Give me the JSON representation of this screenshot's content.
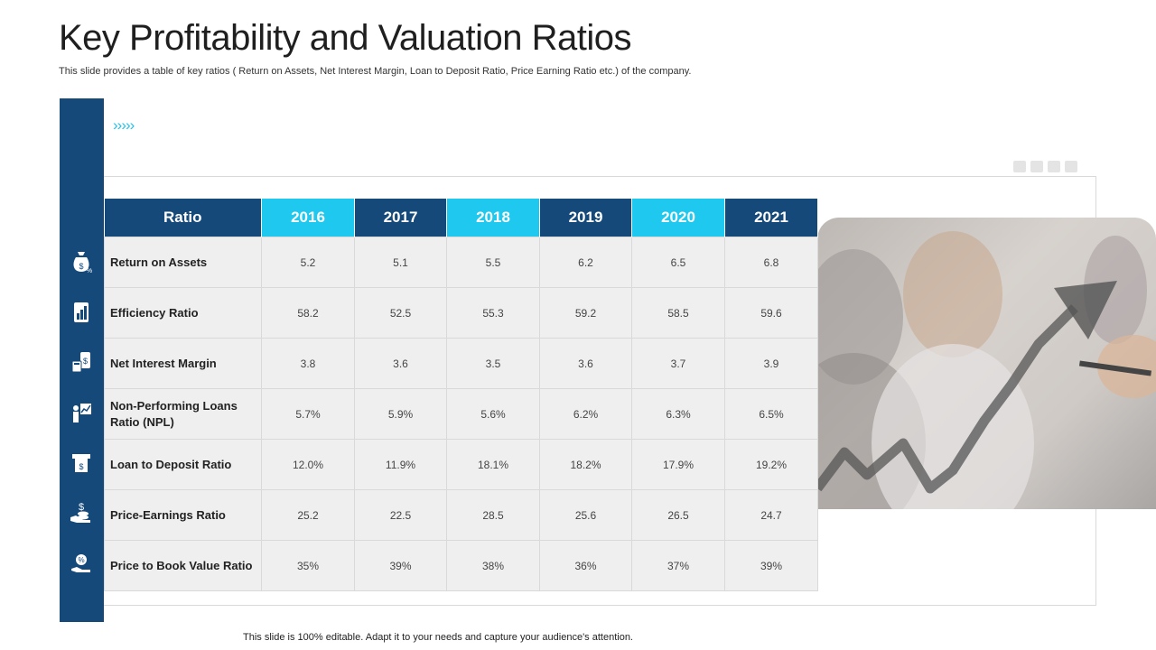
{
  "title": "Key Profitability and Valuation Ratios",
  "subtitle": "This slide provides a table of key ratios ( Return on Assets, Net Interest Margin, Loan to Deposit Ratio, Price Earning Ratio etc.) of the company.",
  "chevrons": "›››››",
  "table": {
    "header_label": "Ratio",
    "years": [
      "2016",
      "2017",
      "2018",
      "2019",
      "2020",
      "2021"
    ],
    "rows": [
      {
        "label": "Return on Assets",
        "icon": "money-bag-percent-icon",
        "values": [
          "5.2",
          "5.1",
          "5.5",
          "6.2",
          "6.5",
          "6.8"
        ]
      },
      {
        "label": "Efficiency Ratio",
        "icon": "report-chart-icon",
        "values": [
          "58.2",
          "52.5",
          "55.3",
          "59.2",
          "58.5",
          "59.6"
        ]
      },
      {
        "label": "Net Interest Margin",
        "icon": "calculator-money-icon",
        "values": [
          "3.8",
          "3.6",
          "3.5",
          "3.6",
          "3.7",
          "3.9"
        ]
      },
      {
        "label": "Non-Performing Loans Ratio (NPL)",
        "icon": "person-chart-icon",
        "values": [
          "5.7%",
          "5.9%",
          "5.6%",
          "6.2%",
          "6.3%",
          "6.5%"
        ]
      },
      {
        "label": "Loan to Deposit Ratio",
        "icon": "atm-deposit-icon",
        "values": [
          "12.0%",
          "11.9%",
          "18.1%",
          "18.2%",
          "17.9%",
          "19.2%"
        ]
      },
      {
        "label": "Price-Earnings Ratio",
        "icon": "hand-coins-dollar-icon",
        "values": [
          "25.2",
          "22.5",
          "28.5",
          "25.6",
          "26.5",
          "24.7"
        ]
      },
      {
        "label": "Price to Book Value Ratio",
        "icon": "hand-percent-icon",
        "values": [
          "35%",
          "39%",
          "38%",
          "36%",
          "37%",
          "39%"
        ]
      }
    ]
  },
  "footer": "This slide is 100% editable. Adapt it to your needs and capture your audience's attention.",
  "colors": {
    "dark_blue": "#14497a",
    "light_blue": "#1ec8ee",
    "cell_bg": "#efefef"
  }
}
